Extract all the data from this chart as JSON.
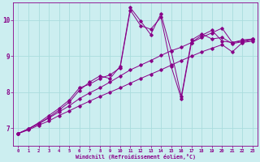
{
  "xlabel": "Windchill (Refroidissement éolien,°C)",
  "xlim": [
    -0.5,
    23.5
  ],
  "ylim": [
    6.5,
    10.5
  ],
  "yticks": [
    7,
    8,
    9,
    10
  ],
  "xticks": [
    0,
    1,
    2,
    3,
    4,
    5,
    6,
    7,
    8,
    9,
    10,
    11,
    12,
    13,
    14,
    15,
    16,
    17,
    18,
    19,
    20,
    21,
    22,
    23
  ],
  "background_color": "#cceef0",
  "line_color": "#880088",
  "grid_color": "#aadddd",
  "lines": [
    {
      "x": [
        0,
        1,
        2,
        3,
        4,
        5,
        6,
        7,
        8,
        9,
        10,
        11,
        12,
        13,
        14,
        15,
        16,
        17,
        18,
        19,
        20,
        21,
        22,
        23
      ],
      "y": [
        6.85,
        6.95,
        7.08,
        7.2,
        7.35,
        7.48,
        7.62,
        7.75,
        7.88,
        8.0,
        8.12,
        8.25,
        8.38,
        8.5,
        8.62,
        8.75,
        8.88,
        9.0,
        9.12,
        9.22,
        9.32,
        9.12,
        9.38,
        9.42
      ]
    },
    {
      "x": [
        0,
        1,
        2,
        3,
        4,
        5,
        6,
        7,
        8,
        9,
        10,
        11,
        12,
        13,
        14,
        15,
        16,
        17,
        18,
        19,
        20,
        21,
        22,
        23
      ],
      "y": [
        6.85,
        6.98,
        7.12,
        7.28,
        7.45,
        7.62,
        7.82,
        7.98,
        8.12,
        8.28,
        8.45,
        8.62,
        8.75,
        8.88,
        9.02,
        9.15,
        9.25,
        9.38,
        9.52,
        9.65,
        9.78,
        9.38,
        9.42,
        9.48
      ]
    },
    {
      "x": [
        0,
        1,
        2,
        3,
        4,
        5,
        6,
        7,
        8,
        9,
        10,
        11,
        12,
        13,
        14,
        15,
        16,
        17,
        18,
        19,
        20,
        21,
        22,
        23
      ],
      "y": [
        6.85,
        6.98,
        7.12,
        7.3,
        7.5,
        7.72,
        8.05,
        8.28,
        8.45,
        8.38,
        8.72,
        10.35,
        9.98,
        9.6,
        10.18,
        9.15,
        7.88,
        9.45,
        9.62,
        9.48,
        9.52,
        9.35,
        9.4,
        9.45
      ]
    },
    {
      "x": [
        0,
        1,
        2,
        3,
        4,
        5,
        6,
        7,
        8,
        9,
        10,
        11,
        12,
        13,
        14,
        15,
        16,
        17,
        18,
        19,
        20,
        21,
        22,
        23
      ],
      "y": [
        6.85,
        6.98,
        7.15,
        7.35,
        7.55,
        7.78,
        8.12,
        8.22,
        8.38,
        8.48,
        8.68,
        10.28,
        9.85,
        9.75,
        10.08,
        8.72,
        7.82,
        9.38,
        9.58,
        9.72,
        9.42,
        9.38,
        9.45,
        9.48
      ]
    }
  ]
}
